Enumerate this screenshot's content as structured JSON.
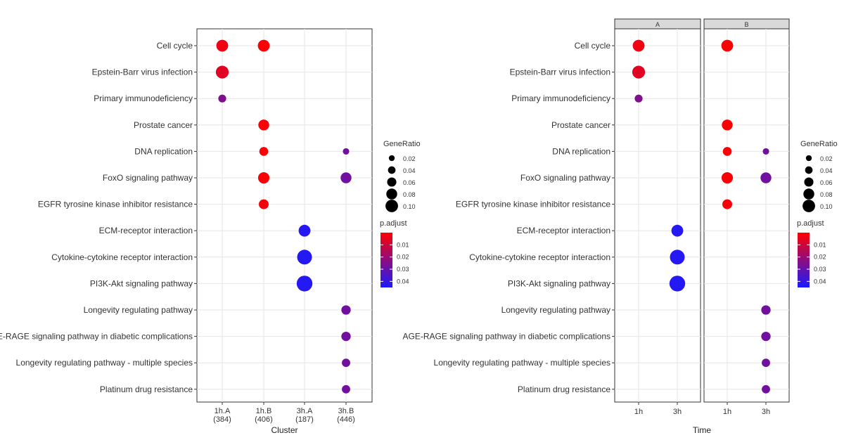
{
  "chart_data": [
    {
      "type": "scatter",
      "subtype": "dot-plot",
      "xlabel": "Cluster",
      "ylabel": "",
      "grid": true,
      "categories_x": [
        "1h.A\n(384)",
        "1h.B\n(406)",
        "3h.A\n(187)",
        "3h.B\n(446)"
      ],
      "categories_y": [
        "Cell cycle",
        "Epstein-Barr virus infection",
        "Primary immunodeficiency",
        "Prostate cancer",
        "DNA replication",
        "FoxO signaling pathway",
        "EGFR tyrosine kinase inhibitor resistance",
        "ECM-receptor interaction",
        "Cytokine-cytokine receptor interaction",
        "PI3K-Akt signaling pathway",
        "Longevity regulating pathway",
        "AGE-RAGE signaling pathway in diabetic complications",
        "Longevity regulating pathway - multiple species",
        "Platinum drug resistance"
      ],
      "points": [
        {
          "x": "1h.A\n(384)",
          "y": "Cell cycle",
          "gene_ratio": 0.07,
          "p_adjust": 0.003
        },
        {
          "x": "1h.A\n(384)",
          "y": "Epstein-Barr virus infection",
          "gene_ratio": 0.08,
          "p_adjust": 0.006
        },
        {
          "x": "1h.A\n(384)",
          "y": "Primary immunodeficiency",
          "gene_ratio": 0.03,
          "p_adjust": 0.025
        },
        {
          "x": "1h.B\n(406)",
          "y": "Cell cycle",
          "gene_ratio": 0.07,
          "p_adjust": 0.001
        },
        {
          "x": "1h.B\n(406)",
          "y": "Prostate cancer",
          "gene_ratio": 0.06,
          "p_adjust": 0.001
        },
        {
          "x": "1h.B\n(406)",
          "y": "DNA replication",
          "gene_ratio": 0.04,
          "p_adjust": 0.001
        },
        {
          "x": "1h.B\n(406)",
          "y": "FoxO signaling pathway",
          "gene_ratio": 0.065,
          "p_adjust": 0.001
        },
        {
          "x": "1h.B\n(406)",
          "y": "EGFR tyrosine kinase inhibitor resistance",
          "gene_ratio": 0.05,
          "p_adjust": 0.002
        },
        {
          "x": "3h.A\n(187)",
          "y": "ECM-receptor interaction",
          "gene_ratio": 0.07,
          "p_adjust": 0.043
        },
        {
          "x": "3h.A\n(187)",
          "y": "Cytokine-cytokine receptor interaction",
          "gene_ratio": 0.1,
          "p_adjust": 0.043
        },
        {
          "x": "3h.A\n(187)",
          "y": "PI3K-Akt signaling pathway",
          "gene_ratio": 0.11,
          "p_adjust": 0.043
        },
        {
          "x": "3h.B\n(446)",
          "y": "DNA replication",
          "gene_ratio": 0.015,
          "p_adjust": 0.028
        },
        {
          "x": "3h.B\n(446)",
          "y": "FoxO signaling pathway",
          "gene_ratio": 0.06,
          "p_adjust": 0.028
        },
        {
          "x": "3h.B\n(446)",
          "y": "Longevity regulating pathway",
          "gene_ratio": 0.045,
          "p_adjust": 0.028
        },
        {
          "x": "3h.B\n(446)",
          "y": "AGE-RAGE signaling pathway in diabetic complications",
          "gene_ratio": 0.045,
          "p_adjust": 0.028
        },
        {
          "x": "3h.B\n(446)",
          "y": "Longevity regulating pathway - multiple species",
          "gene_ratio": 0.035,
          "p_adjust": 0.028
        },
        {
          "x": "3h.B\n(446)",
          "y": "Platinum drug resistance",
          "gene_ratio": 0.035,
          "p_adjust": 0.028
        }
      ],
      "size_legend": {
        "title": "GeneRatio",
        "values": [
          0.02,
          0.04,
          0.06,
          0.08,
          0.1
        ],
        "labels": [
          "0.02",
          "0.04",
          "0.06",
          "0.08",
          "0.10"
        ]
      },
      "color_legend": {
        "title": "p.adjust",
        "ticks": [
          0.01,
          0.02,
          0.03,
          0.04
        ],
        "labels": [
          "0.01",
          "0.02",
          "0.03",
          "0.04"
        ],
        "range": [
          0.0,
          0.045
        ],
        "low_color": "#ff0000",
        "high_color": "#1a1aff"
      },
      "legend_position": "right"
    },
    {
      "type": "scatter",
      "subtype": "faceted-dot-plot",
      "xlabel": "Time",
      "ylabel": "",
      "grid": true,
      "facets": [
        "A",
        "B"
      ],
      "categories_x": [
        "1h",
        "3h"
      ],
      "categories_y": [
        "Cell cycle",
        "Epstein-Barr virus infection",
        "Primary immunodeficiency",
        "Prostate cancer",
        "DNA replication",
        "FoxO signaling pathway",
        "EGFR tyrosine kinase inhibitor resistance",
        "ECM-receptor interaction",
        "Cytokine-cytokine receptor interaction",
        "PI3K-Akt signaling pathway",
        "Longevity regulating pathway",
        "AGE-RAGE signaling pathway in diabetic complications",
        "Longevity regulating pathway - multiple species",
        "Platinum drug resistance"
      ],
      "points": [
        {
          "facet": "A",
          "x": "1h",
          "y": "Cell cycle",
          "gene_ratio": 0.07,
          "p_adjust": 0.003
        },
        {
          "facet": "A",
          "x": "1h",
          "y": "Epstein-Barr virus infection",
          "gene_ratio": 0.08,
          "p_adjust": 0.006
        },
        {
          "facet": "A",
          "x": "1h",
          "y": "Primary immunodeficiency",
          "gene_ratio": 0.03,
          "p_adjust": 0.025
        },
        {
          "facet": "A",
          "x": "3h",
          "y": "ECM-receptor interaction",
          "gene_ratio": 0.07,
          "p_adjust": 0.043
        },
        {
          "facet": "A",
          "x": "3h",
          "y": "Cytokine-cytokine receptor interaction",
          "gene_ratio": 0.1,
          "p_adjust": 0.043
        },
        {
          "facet": "A",
          "x": "3h",
          "y": "PI3K-Akt signaling pathway",
          "gene_ratio": 0.11,
          "p_adjust": 0.043
        },
        {
          "facet": "B",
          "x": "1h",
          "y": "Cell cycle",
          "gene_ratio": 0.07,
          "p_adjust": 0.001
        },
        {
          "facet": "B",
          "x": "1h",
          "y": "Prostate cancer",
          "gene_ratio": 0.06,
          "p_adjust": 0.001
        },
        {
          "facet": "B",
          "x": "1h",
          "y": "DNA replication",
          "gene_ratio": 0.04,
          "p_adjust": 0.001
        },
        {
          "facet": "B",
          "x": "1h",
          "y": "FoxO signaling pathway",
          "gene_ratio": 0.065,
          "p_adjust": 0.001
        },
        {
          "facet": "B",
          "x": "1h",
          "y": "EGFR tyrosine kinase inhibitor resistance",
          "gene_ratio": 0.05,
          "p_adjust": 0.002
        },
        {
          "facet": "B",
          "x": "3h",
          "y": "DNA replication",
          "gene_ratio": 0.015,
          "p_adjust": 0.028
        },
        {
          "facet": "B",
          "x": "3h",
          "y": "FoxO signaling pathway",
          "gene_ratio": 0.06,
          "p_adjust": 0.028
        },
        {
          "facet": "B",
          "x": "3h",
          "y": "Longevity regulating pathway",
          "gene_ratio": 0.045,
          "p_adjust": 0.028
        },
        {
          "facet": "B",
          "x": "3h",
          "y": "AGE-RAGE signaling pathway in diabetic complications",
          "gene_ratio": 0.045,
          "p_adjust": 0.028
        },
        {
          "facet": "B",
          "x": "3h",
          "y": "Longevity regulating pathway - multiple species",
          "gene_ratio": 0.035,
          "p_adjust": 0.028
        },
        {
          "facet": "B",
          "x": "3h",
          "y": "Platinum drug resistance",
          "gene_ratio": 0.035,
          "p_adjust": 0.028
        }
      ],
      "size_legend": {
        "title": "GeneRatio",
        "values": [
          0.02,
          0.04,
          0.06,
          0.08,
          0.1
        ],
        "labels": [
          "0.02",
          "0.04",
          "0.06",
          "0.08",
          "0.10"
        ]
      },
      "color_legend": {
        "title": "p.adjust",
        "ticks": [
          0.01,
          0.02,
          0.03,
          0.04
        ],
        "labels": [
          "0.01",
          "0.02",
          "0.03",
          "0.04"
        ],
        "range": [
          0.0,
          0.045
        ],
        "low_color": "#ff0000",
        "high_color": "#1a1aff"
      },
      "legend_position": "right"
    }
  ]
}
